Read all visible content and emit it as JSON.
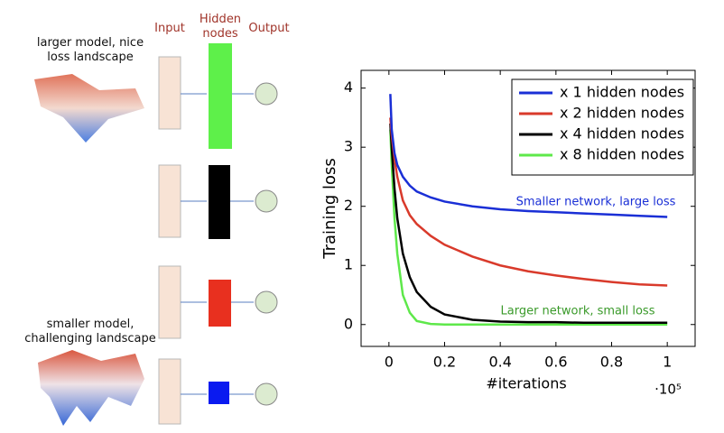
{
  "diagram": {
    "columns": [
      "Input",
      "Hidden nodes",
      "Output"
    ],
    "large_caption": "larger model, nice loss landscape",
    "small_caption": "smaller model, challenging landscape"
  },
  "chart_data": {
    "type": "line",
    "x_label": "#iterations",
    "y_label": "Training loss",
    "x_multiplier": "·10⁵",
    "x": [
      0.005,
      0.01,
      0.02,
      0.03,
      0.05,
      0.075,
      0.1,
      0.15,
      0.2,
      0.3,
      0.4,
      0.5,
      0.6,
      0.7,
      0.8,
      0.9,
      1.0
    ],
    "series": [
      {
        "name": "x 1 hidden nodes",
        "color": "#1a2fd6",
        "values": [
          3.9,
          3.3,
          2.9,
          2.7,
          2.5,
          2.35,
          2.25,
          2.15,
          2.08,
          2.0,
          1.95,
          1.92,
          1.9,
          1.88,
          1.86,
          1.84,
          1.82
        ]
      },
      {
        "name": "x 2 hidden nodes",
        "color": "#d93a2b",
        "values": [
          3.5,
          3.2,
          2.8,
          2.5,
          2.1,
          1.85,
          1.7,
          1.5,
          1.35,
          1.15,
          1.0,
          0.9,
          0.83,
          0.77,
          0.72,
          0.68,
          0.66
        ]
      },
      {
        "name": "x 4 hidden nodes",
        "color": "#000000",
        "values": [
          3.4,
          3.0,
          2.3,
          1.8,
          1.2,
          0.8,
          0.55,
          0.3,
          0.17,
          0.08,
          0.05,
          0.04,
          0.04,
          0.03,
          0.03,
          0.03,
          0.03
        ]
      },
      {
        "name": "x 8 hidden nodes",
        "color": "#5ee84a",
        "values": [
          3.3,
          2.7,
          1.8,
          1.2,
          0.5,
          0.2,
          0.06,
          0.01,
          0,
          0,
          0,
          0,
          0,
          0,
          0,
          0,
          0
        ]
      }
    ],
    "annotations": [
      "Smaller network, large loss",
      "Larger network, small loss"
    ],
    "xlim": [
      -0.1,
      1.1
    ],
    "ylim": [
      -0.37,
      4.3
    ],
    "xticks": [
      0,
      0.2,
      0.4,
      0.6,
      0.8,
      1
    ],
    "yticks": [
      0,
      1,
      2,
      3,
      4
    ],
    "legend": "top-right"
  }
}
